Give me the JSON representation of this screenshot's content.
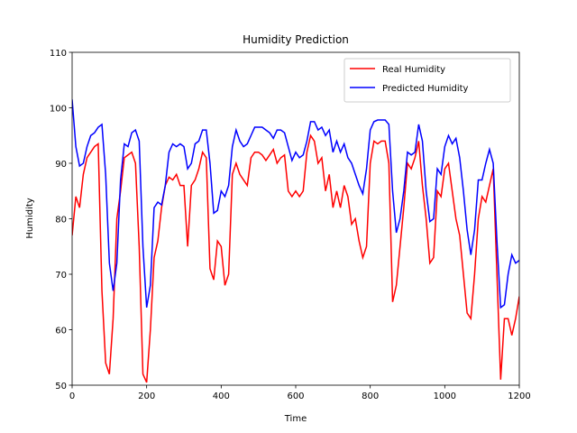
{
  "chart_data": {
    "type": "line",
    "title": "Humidity Prediction",
    "xlabel": "Time",
    "ylabel": "Humidity",
    "x": [
      0,
      10,
      20,
      30,
      40,
      50,
      60,
      70,
      80,
      90,
      100,
      110,
      120,
      130,
      140,
      150,
      160,
      170,
      180,
      190,
      200,
      210,
      220,
      230,
      240,
      250,
      260,
      270,
      280,
      290,
      300,
      310,
      320,
      330,
      340,
      350,
      360,
      370,
      380,
      390,
      400,
      410,
      420,
      430,
      440,
      450,
      460,
      470,
      480,
      490,
      500,
      510,
      520,
      530,
      540,
      550,
      560,
      570,
      580,
      590,
      600,
      610,
      620,
      630,
      640,
      650,
      660,
      670,
      680,
      690,
      700,
      710,
      720,
      730,
      740,
      750,
      760,
      770,
      780,
      790,
      800,
      810,
      820,
      830,
      840,
      850,
      860,
      870,
      880,
      890,
      900,
      910,
      920,
      930,
      940,
      950,
      960,
      970,
      980,
      990,
      1000,
      1010,
      1020,
      1030,
      1040,
      1050,
      1060,
      1070,
      1080,
      1090,
      1100,
      1110,
      1120,
      1130,
      1140,
      1150,
      1160,
      1170,
      1180,
      1190,
      1200
    ],
    "series": [
      {
        "name": "Real Humidity",
        "color": "#ff0000",
        "values": [
          77,
          84,
          82,
          88,
          91,
          92,
          93,
          93.5,
          67,
          54,
          52,
          62,
          80,
          85,
          91,
          91.5,
          92,
          90,
          75,
          52,
          50.5,
          60,
          73,
          76,
          82,
          86,
          87.5,
          87,
          88,
          86,
          86,
          75,
          86,
          87,
          89,
          92,
          91,
          71,
          69,
          76,
          75,
          68,
          70,
          88,
          90,
          88,
          87,
          86,
          91,
          92,
          92,
          91.5,
          90.5,
          91.5,
          92.5,
          90,
          91,
          91.5,
          85,
          84,
          85,
          84,
          85,
          92,
          95,
          94,
          90,
          91,
          85,
          88,
          82,
          85,
          82,
          86,
          84,
          79,
          80,
          76,
          73,
          75,
          90,
          94,
          93.5,
          94,
          94,
          90,
          65,
          68,
          75,
          82,
          90,
          89,
          91,
          94,
          86,
          80,
          72,
          73,
          85,
          84,
          89,
          90,
          85,
          80,
          77,
          70,
          63,
          62,
          70,
          80,
          84,
          83,
          86,
          89,
          70,
          51,
          62,
          62,
          59,
          62,
          66
        ]
      },
      {
        "name": "Predicted Humidity",
        "color": "#0000ff",
        "values": [
          101.5,
          93,
          89.5,
          90,
          93,
          95,
          95.5,
          96.5,
          97,
          88,
          72,
          67,
          72,
          87,
          93.5,
          93,
          95.5,
          96,
          94,
          75,
          64,
          68,
          82,
          83,
          82.5,
          86,
          92,
          93.5,
          93,
          93.5,
          93,
          89,
          90,
          93.5,
          94,
          96,
          96,
          90,
          81,
          81.5,
          85,
          84,
          86,
          93,
          96,
          94,
          93,
          93.5,
          95,
          96.5,
          96.5,
          96.5,
          96,
          95.5,
          94.5,
          96,
          96,
          95.5,
          93,
          90.5,
          92,
          91,
          91.5,
          94,
          97.5,
          97.5,
          96,
          96.5,
          95,
          96,
          92,
          94,
          92,
          93.5,
          91,
          90,
          88,
          86,
          84.5,
          89,
          96,
          97.5,
          97.8,
          97.8,
          97.8,
          97,
          85,
          77.5,
          80,
          85,
          92,
          91.5,
          92,
          97,
          94,
          85,
          79.5,
          80,
          89,
          88,
          93,
          95,
          93.5,
          94.5,
          91,
          85,
          78,
          73.5,
          78,
          87,
          87,
          90,
          92.5,
          90,
          76,
          64,
          64.5,
          70,
          73.5,
          72,
          72.5
        ]
      }
    ],
    "xlim": [
      0,
      1200
    ],
    "ylim": [
      50,
      110
    ],
    "xticks": [
      0,
      200,
      400,
      600,
      800,
      1000,
      1200
    ],
    "yticks": [
      50,
      60,
      70,
      80,
      90,
      100,
      110
    ],
    "legend": "upper right"
  }
}
